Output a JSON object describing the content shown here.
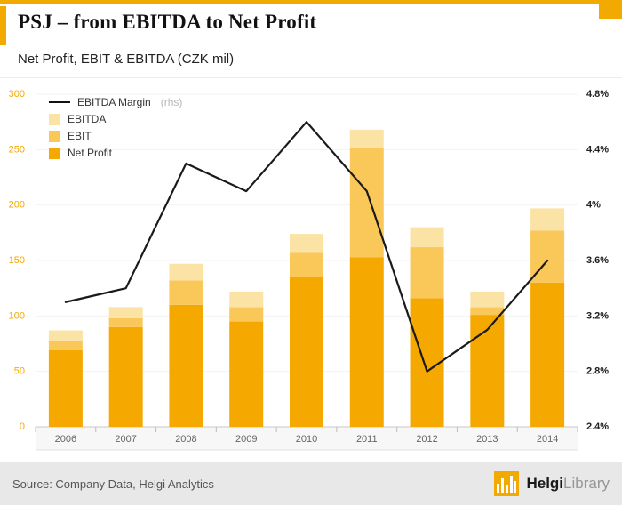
{
  "header": {
    "title": "PSJ – from EBITDA to Net Profit",
    "subtitle": "Net Profit, EBIT & EBITDA (CZK mil)"
  },
  "footer": {
    "source": "Source: Company Data, Helgi Analytics",
    "logo_bold": "Helgi",
    "logo_light": "Library"
  },
  "colors": {
    "accent": "#F2A900",
    "net_profit": "#F5A800",
    "ebit": "#F9C858",
    "ebitda": "#FBE3A6",
    "margin_line": "#1a1a1a",
    "left_axis_label": "#F5A800",
    "right_axis_label": "#222222"
  },
  "chart_data": {
    "type": "bar",
    "subtype": "stacked-bars-with-line",
    "categories": [
      "2006",
      "2007",
      "2008",
      "2009",
      "2010",
      "2011",
      "2012",
      "2013",
      "2014"
    ],
    "series": [
      {
        "name": "Net Profit",
        "type": "bar-stack",
        "values": [
          69,
          90,
          110,
          95,
          135,
          153,
          116,
          101,
          130
        ]
      },
      {
        "name": "EBIT",
        "type": "bar-stack",
        "values": [
          78,
          98,
          132,
          108,
          157,
          252,
          162,
          108,
          177
        ]
      },
      {
        "name": "EBITDA",
        "type": "bar-stack",
        "values": [
          87,
          108,
          147,
          122,
          174,
          268,
          180,
          122,
          197
        ]
      },
      {
        "name": "EBITDA Margin (rhs)",
        "type": "line",
        "axis": "right",
        "values": [
          3.3,
          3.4,
          4.3,
          4.1,
          4.6,
          4.1,
          2.8,
          3.1,
          3.6
        ]
      }
    ],
    "left_axis": {
      "min": 0,
      "max": 300,
      "ticks": [
        0,
        50,
        100,
        150,
        200,
        250,
        300
      ]
    },
    "right_axis": {
      "min": 2.4,
      "max": 4.8,
      "ticks": [
        "2.4%",
        "2.8%",
        "3.2%",
        "3.6%",
        "4%",
        "4.4%",
        "4.8%"
      ]
    },
    "legend": [
      {
        "label": "EBITDA Margin",
        "suffix": " (rhs)",
        "swatch": "line"
      },
      {
        "label": "EBITDA",
        "swatch": "ebitda"
      },
      {
        "label": "EBIT",
        "swatch": "ebit"
      },
      {
        "label": "Net Profit",
        "swatch": "net_profit"
      }
    ],
    "legend_position": "top-left",
    "grid": "faint-horizontal"
  }
}
